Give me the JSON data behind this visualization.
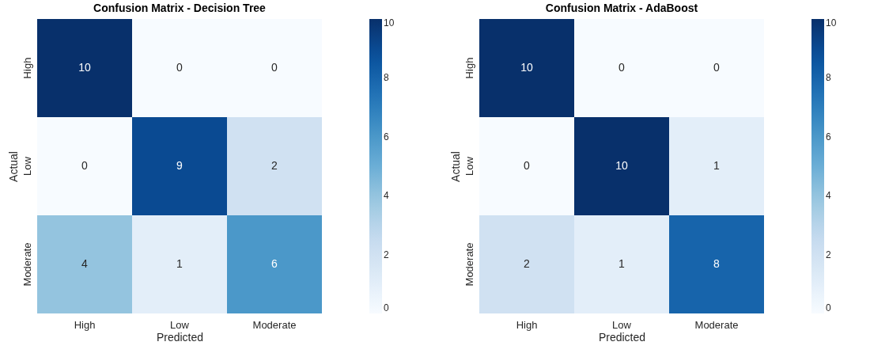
{
  "chart_data": [
    {
      "type": "heatmap",
      "title": "Confusion Matrix - Decision Tree",
      "xlabel": "Predicted",
      "ylabel": "Actual",
      "categories": [
        "High",
        "Low",
        "Moderate"
      ],
      "y_categories": [
        "High",
        "Low",
        "Moderate"
      ],
      "cells": [
        [
          10,
          0,
          0
        ],
        [
          0,
          9,
          2
        ],
        [
          4,
          1,
          6
        ]
      ],
      "data_labels": true,
      "clim": [
        0,
        10
      ],
      "cticks": [
        0,
        2,
        4,
        6,
        8,
        10
      ]
    },
    {
      "type": "heatmap",
      "title": "Confusion Matrix - AdaBoost",
      "xlabel": "Predicted",
      "ylabel": "Actual",
      "categories": [
        "High",
        "Low",
        "Moderate"
      ],
      "y_categories": [
        "High",
        "Low",
        "Moderate"
      ],
      "cells": [
        [
          10,
          0,
          0
        ],
        [
          0,
          10,
          1
        ],
        [
          2,
          1,
          8
        ]
      ],
      "data_labels": true,
      "clim": [
        0,
        10
      ],
      "cticks": [
        0,
        2,
        4,
        6,
        8,
        10
      ]
    }
  ]
}
